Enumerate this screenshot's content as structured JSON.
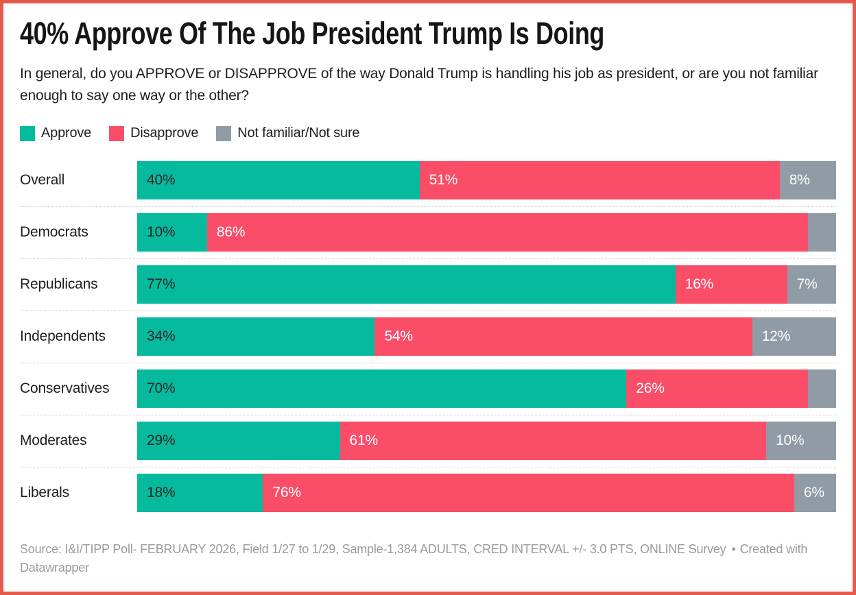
{
  "frame": {
    "border_color": "#E4594B",
    "background": "#FFFFFF"
  },
  "header": {
    "title": "40% Approve Of The Job President Trump Is Doing",
    "subtitle": "In general, do you APPROVE or DISAPPROVE of the way Donald Trump is handling his job as president, or are you not familiar enough to say one way or the other?"
  },
  "legend": {
    "items": [
      {
        "label": "Approve",
        "color": "#06BA9E"
      },
      {
        "label": "Disapprove",
        "color": "#FA4E68"
      },
      {
        "label": "Not familiar/Not sure",
        "color": "#919BA5"
      }
    ]
  },
  "chart_data": {
    "type": "bar",
    "variant": "horizontal-stacked-100",
    "title": "40% Approve Of The Job President Trump Is Doing",
    "value_suffix": "%",
    "grid": false,
    "legend_position": "top",
    "xlim": [
      0,
      100
    ],
    "categories": [
      "Overall",
      "Democrats",
      "Republicans",
      "Independents",
      "Conservatives",
      "Moderates",
      "Liberals"
    ],
    "series": [
      {
        "name": "Approve",
        "color": "#06BA9E",
        "label_color": "#262626",
        "values": [
          40,
          10,
          77,
          34,
          70,
          29,
          18
        ]
      },
      {
        "name": "Disapprove",
        "color": "#FA4E68",
        "label_color": "#FFFFFF",
        "values": [
          51,
          86,
          16,
          54,
          26,
          61,
          76
        ]
      },
      {
        "name": "Not familiar/Not sure",
        "color": "#919BA5",
        "label_color": "#FFFFFF",
        "values": [
          8,
          4,
          7,
          12,
          4,
          10,
          6
        ],
        "label_hidden_categories": [
          "Democrats",
          "Conservatives"
        ]
      }
    ]
  },
  "footer": {
    "source": "Source: I&I/TIPP Poll- FEBRUARY 2026, Field 1/27 to 1/29, Sample-1,384 ADULTS, CRED INTERVAL +/- 3.0 PTS, ONLINE Survey",
    "separator": "•",
    "credit": "Created with Datawrapper"
  }
}
